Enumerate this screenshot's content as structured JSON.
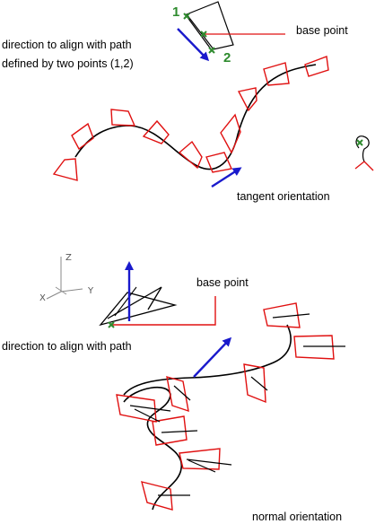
{
  "labels": {
    "base_point_top": "base point",
    "direction_line1": "direction to align with path",
    "direction_line2": "defined by two points (1,2)",
    "tangent_orientation": "tangent orientation",
    "base_point_bottom": "base point",
    "direction_bottom": "direction to align with path",
    "normal_orientation": "normal orientation"
  },
  "point_labels": {
    "p1": "1",
    "p2": "2"
  },
  "axis_labels": {
    "z": "Z",
    "y": "Y",
    "x": "X"
  },
  "colors": {
    "path": "#000000",
    "frame": "#e01010",
    "arrow": "#1a1acc",
    "marker": "#2e8b2e",
    "axis": "#888888"
  }
}
